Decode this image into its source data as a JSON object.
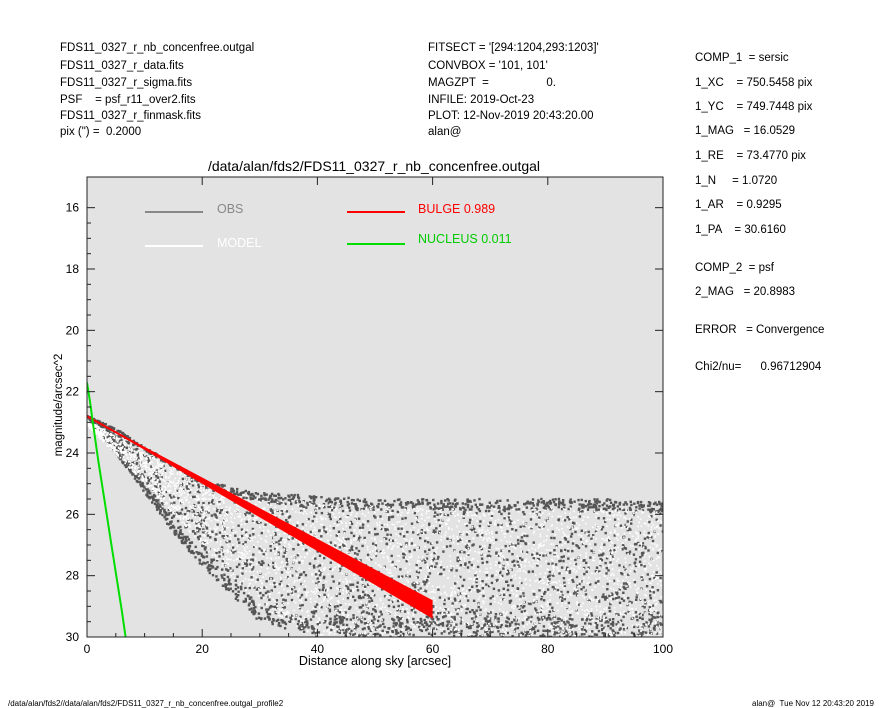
{
  "header_left": [
    "FDS11_0327_r_nb_concenfree.outgal",
    "FDS11_0327_r_data.fits",
    "FDS11_0327_r_sigma.fits",
    "PSF    = psf_r11_over2.fits",
    "FDS11_0327_r_finmask.fits",
    "pix (\") =  0.2000"
  ],
  "header_mid": [
    "FITSECT = '[294:1204,293:1203]'",
    "CONVBOX = '101, 101'",
    "MAGZPT  =                  0.",
    "INFILE: 2019-Oct-23",
    "PLOT: 12-Nov-2019 20:43:20.00",
    "alan@"
  ],
  "right_panel": [
    "COMP_1  = sersic",
    "1_XC    = 750.5458 pix",
    "1_YC    = 749.7448 pix",
    "1_MAG   = 16.0529",
    "1_RE    = 73.4770 pix",
    "1_N     = 1.0720",
    "1_AR    = 0.9295",
    "1_PA    = 30.6160",
    "COMP_2  = psf",
    "2_MAG   = 20.8983",
    "ERROR   = Convergence",
    "Chi2/nu=      0.96712904"
  ],
  "footer_left": "/data/alan/fds2//data/alan/fds2/FDS11_0327_r_nb_concenfree.outgal_profile2",
  "footer_right": "alan@  Tue Nov 12 20:43:20 2019",
  "chart_data": {
    "type": "scatter",
    "title": "/data/alan/fds2/FDS11_0327_r_nb_concenfree.outgal",
    "xlabel": "Distance along sky [arcsec]",
    "ylabel": "magnitude/arcsec^2",
    "xlim": [
      0,
      100
    ],
    "ylim": [
      30,
      15
    ],
    "y_inverted": true,
    "xticks": [
      0,
      20,
      40,
      60,
      80,
      100
    ],
    "yticks": [
      16,
      18,
      20,
      22,
      24,
      26,
      28,
      30
    ],
    "background": "#e3e3e3",
    "legend": [
      {
        "label": "OBS",
        "color": "#888888"
      },
      {
        "label": "MODEL",
        "color": "#ffffff"
      },
      {
        "label": "BULGE  0.989",
        "color": "#ff0000"
      },
      {
        "label": "NUCLEUS  0.011",
        "color": "#00dd00"
      }
    ],
    "series": [
      {
        "name": "BULGE  0.989",
        "color": "#ff0000",
        "x": [
          0,
          10,
          20,
          30,
          40,
          50,
          60
        ],
        "y": [
          22.8,
          23.85,
          24.9,
          25.95,
          27.0,
          28.05,
          29.1
        ],
        "band_width": 0.6
      },
      {
        "name": "NUCLEUS  0.011",
        "color": "#00dd00",
        "x": [
          0,
          0.5,
          1,
          2,
          3,
          4,
          5,
          6,
          6.7
        ],
        "y": [
          21.7,
          22.3,
          23.0,
          24.3,
          25.5,
          26.7,
          27.9,
          29.1,
          30.0
        ]
      },
      {
        "name": "OBS",
        "color": "#555555",
        "kind": "cloud",
        "envelope": {
          "x": [
            0,
            5,
            10,
            15,
            20,
            30,
            40,
            50,
            60,
            70,
            80,
            90,
            100
          ],
          "top": [
            22.8,
            23.2,
            23.8,
            24.3,
            24.9,
            25.3,
            25.4,
            25.5,
            25.5,
            25.5,
            25.5,
            25.5,
            25.6
          ],
          "bottom": [
            22.8,
            24.0,
            25.3,
            26.6,
            27.7,
            29.5,
            30,
            30,
            30,
            30,
            30,
            30,
            30
          ]
        }
      },
      {
        "name": "MODEL",
        "color": "#ffffff",
        "kind": "cloud",
        "envelope": {
          "x": [
            0,
            10,
            20,
            30,
            40,
            50,
            60,
            70,
            80,
            90,
            100
          ],
          "top": [
            22.9,
            24.0,
            25.0,
            25.5,
            25.6,
            25.7,
            25.8,
            25.8,
            25.8,
            25.8,
            25.8
          ],
          "bottom": [
            23.1,
            25.0,
            27.0,
            29.0,
            30,
            30,
            30,
            30,
            30,
            30,
            30
          ]
        }
      }
    ]
  }
}
